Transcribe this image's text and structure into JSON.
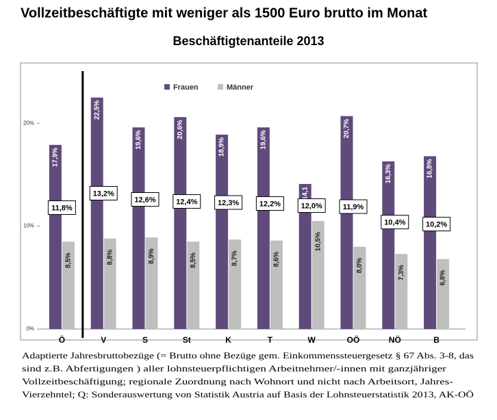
{
  "chart_data": {
    "type": "bar",
    "title": "Vollzeitbeschäftigte mit weniger als 1500 Euro brutto im Monat",
    "subtitle": "Beschäftigtenanteile 2013",
    "categories": [
      "Ö",
      "V",
      "S",
      "St",
      "K",
      "T",
      "W",
      "OÖ",
      "NÖ",
      "B"
    ],
    "series": [
      {
        "name": "Frauen",
        "color": "#604a7b",
        "values": [
          17.9,
          22.5,
          19.6,
          20.6,
          18.9,
          19.6,
          14.1,
          20.7,
          16.3,
          16.8
        ],
        "value_labels": [
          "17,9%",
          "22,5%",
          "19,6%",
          "20,6%",
          "18,9%",
          "19,6%",
          "14,1",
          "20,7%",
          "16,3%",
          "16,8%"
        ]
      },
      {
        "name": "Männer",
        "color": "#bfbfbf",
        "values": [
          8.5,
          8.8,
          8.9,
          8.5,
          8.7,
          8.6,
          10.5,
          8.0,
          7.3,
          6.8
        ],
        "value_labels": [
          "8,5%",
          "8,8%",
          "8,9%",
          "8,5%",
          "8,7%",
          "8,6%",
          "10,5%",
          "8,0%",
          "7,3%",
          "6,8%"
        ]
      }
    ],
    "totals": {
      "values": [
        11.8,
        13.2,
        12.6,
        12.4,
        12.3,
        12.2,
        12.0,
        11.9,
        10.4,
        10.2
      ],
      "value_labels": [
        "11,8%",
        "13,2%",
        "12,6%",
        "12,4%",
        "12,3%",
        "12,2%",
        "12,0%",
        "11,9%",
        "10,4%",
        "10,2%"
      ]
    },
    "ylim": [
      0,
      26
    ],
    "yticks": [
      {
        "value": 0,
        "label": "0%"
      },
      {
        "value": 10,
        "label": "10%"
      },
      {
        "value": 20,
        "label": "20%"
      }
    ],
    "grid": false,
    "notes": [
      "Adaptierte Jahresbruttobezüge (= Brutto ohne Bezüge gem. Einkommenssteuergesetz § 67 Abs. 3-8, das",
      "sind z.B. Abfertigungen ) aller lohnsteuerpflichtigen Arbeitnehmer/-innen mit ganzjähriger",
      "Vollzeitbeschäftigung; regionale Zuordnung nach Wohnort und nicht nach Arbeitsort, Jahres-",
      "Vierzehntel; Q: Sonderauswertung von Statistik Austria auf Basis der Lohnsteuerstatistik 2013, AK-OÖ"
    ]
  }
}
